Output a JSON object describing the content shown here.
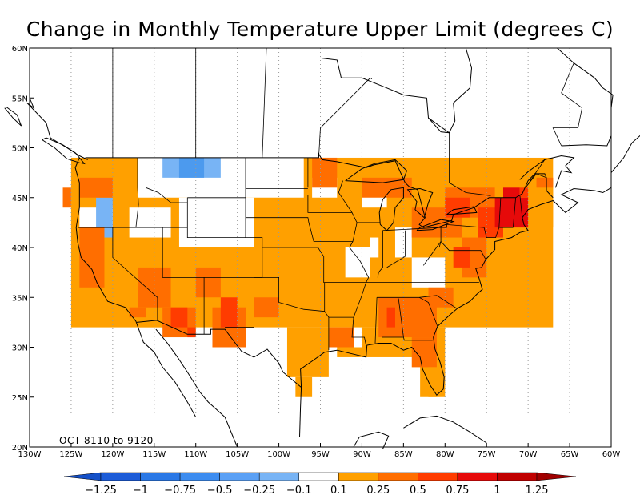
{
  "title": "Change in Monthly Temperature Upper Limit (degrees C)",
  "period_label": "OCT 8110 to 9120",
  "map": {
    "lon_range": [
      -130,
      -60
    ],
    "lat_range": [
      20,
      60
    ],
    "grid": true,
    "lon_tick_labels": [
      "130W",
      "125W",
      "120W",
      "115W",
      "110W",
      "105W",
      "100W",
      "95W",
      "90W",
      "85W",
      "80W",
      "75W",
      "70W",
      "65W",
      "60W"
    ],
    "lat_tick_labels": [
      "20N",
      "25N",
      "30N",
      "35N",
      "40N",
      "45N",
      "50N",
      "55N",
      "60N"
    ],
    "colors": {
      "white": "#ffffff",
      "lightblue": "#78b4f5",
      "blue": "#4c9aee",
      "orange": "#ffa000",
      "darkorange": "#ff6e00",
      "redorange": "#ff3c00",
      "red": "#e60a0a"
    }
  },
  "colorbar": {
    "labels": [
      "-1.25",
      "-1",
      "-0.75",
      "-0.5",
      "-0.25",
      "-0.1",
      "0.1",
      "0.25",
      "0.5",
      "0.75",
      "1",
      "1.25"
    ],
    "colors": [
      "#1c5cd8",
      "#2a78e6",
      "#3c8cf0",
      "#5aa0f5",
      "#78b4f5",
      "#ffffff",
      "#ffa000",
      "#ff6e00",
      "#ff3c00",
      "#e60a0a",
      "#c00000"
    ],
    "left_arrow_color": "#1450c8",
    "right_arrow_color": "#a00000"
  }
}
